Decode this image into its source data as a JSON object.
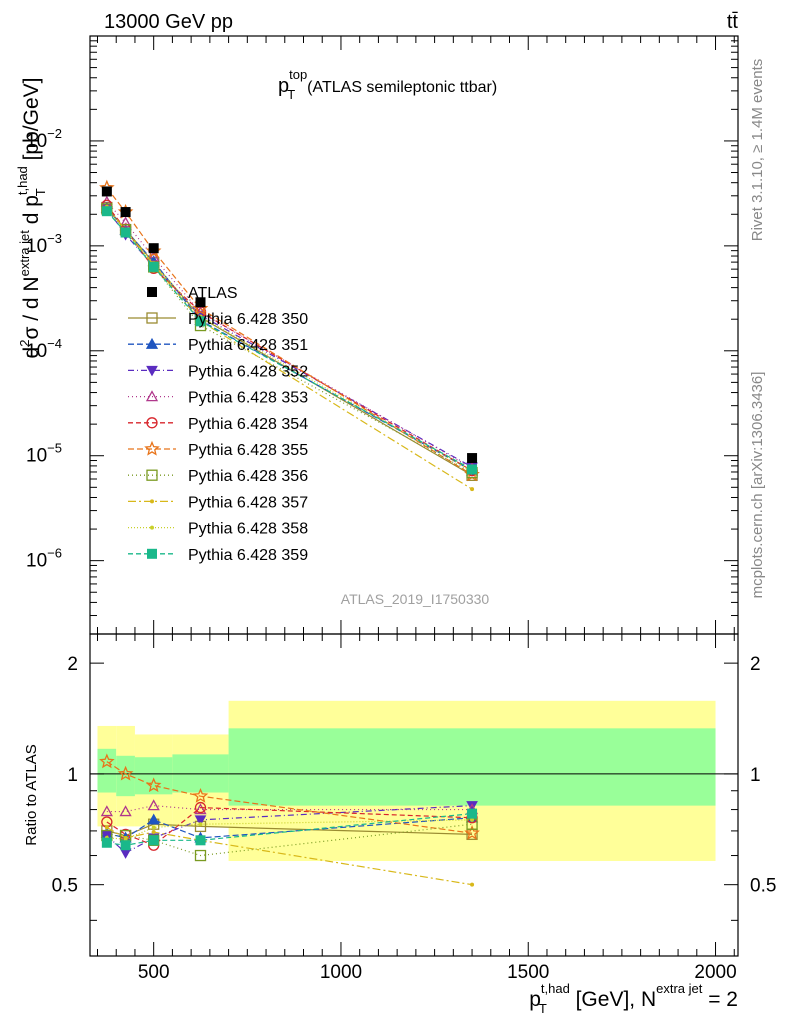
{
  "header": {
    "energy": "13000 GeV pp",
    "process": "tt̄",
    "rivet_version": "Rivet 3.1.10, ≥ 1.4M events",
    "site": "mcplots.cern.ch [arXiv:1306.3436]",
    "analysis_id": "ATLAS_2019_I1750330"
  },
  "chart_data": [
    {
      "type": "scatter",
      "panel": "main",
      "title": "p_T^top (ATLAS semileptonic ttbar)",
      "ylabel": "d²σ / d N^extra jet d p_T^t,had [pb/GeV]",
      "xlim": [
        330,
        2060
      ],
      "ylim": [
        2e-07,
        0.1
      ],
      "y_scale": "log",
      "y_ticks": [
        {
          "v": 1e-06,
          "label": "10",
          "exp": "−6"
        },
        {
          "v": 1e-05,
          "label": "10",
          "exp": "−5"
        },
        {
          "v": 0.0001,
          "label": "10",
          "exp": "−4"
        },
        {
          "v": 0.001,
          "label": "10",
          "exp": "−3"
        },
        {
          "v": 0.01,
          "label": "10",
          "exp": "−2"
        }
      ],
      "x": [
        375,
        425,
        500,
        625,
        1350
      ],
      "data": {
        "name": "ATLAS",
        "values": [
          0.0033,
          0.0021,
          0.00095,
          0.00029,
          9.5e-06
        ]
      },
      "series": [
        {
          "name": "Pythia 6.428 350",
          "color": "#9a8c32",
          "dash": "",
          "marker": "square-open",
          "values": [
            0.00232,
            0.00143,
            0.00069,
            0.000208,
            6.5e-06
          ]
        },
        {
          "name": "Pythia 6.428 351",
          "color": "#1f55c0",
          "dash": "6,3",
          "marker": "triangle-up",
          "values": [
            0.00229,
            0.00141,
            0.00071,
            0.000195,
            7.2e-06
          ]
        },
        {
          "name": "Pythia 6.428 352",
          "color": "#5a2cc0",
          "dash": "6,3,1,3",
          "marker": "triangle-down",
          "values": [
            0.00225,
            0.00128,
            0.00064,
            0.000218,
            7.8e-06
          ]
        },
        {
          "name": "Pythia 6.428 353",
          "color": "#b0388c",
          "dash": "1,3",
          "marker": "triangle-up-open",
          "values": [
            0.00262,
            0.00166,
            0.00078,
            0.000232,
            7.6e-06
          ]
        },
        {
          "name": "Pythia 6.428 354",
          "color": "#d8262c",
          "dash": "5,3",
          "marker": "circle-open",
          "values": [
            0.00244,
            0.00144,
            0.00061,
            0.000235,
            7.2e-06
          ]
        },
        {
          "name": "Pythia 6.428 355",
          "color": "#e8741a",
          "dash": "6,3",
          "marker": "star-open",
          "values": [
            0.00357,
            0.0021,
            0.00089,
            0.000252,
            6.6e-06
          ]
        },
        {
          "name": "Pythia 6.428 356",
          "color": "#7a9a22",
          "dash": "1,3",
          "marker": "square-open",
          "values": [
            0.00225,
            0.00142,
            0.00063,
            0.000174,
            6.9e-06
          ]
        },
        {
          "name": "Pythia 6.428 357",
          "color": "#d8b81a",
          "dash": "8,3,2,3",
          "marker": "dot",
          "values": [
            0.00236,
            0.00141,
            0.00066,
            0.000192,
            4.8e-06
          ]
        },
        {
          "name": "Pythia 6.428 358",
          "color": "#c8d02a",
          "dash": "1,2",
          "marker": "dot",
          "values": [
            0.00221,
            0.0014,
            0.00068,
            0.000212,
            7.1e-06
          ]
        },
        {
          "name": "Pythia 6.428 359",
          "color": "#1ab88a",
          "dash": "5,3",
          "marker": "square",
          "values": [
            0.00214,
            0.00134,
            0.00063,
            0.000191,
            7.4e-06
          ]
        }
      ]
    },
    {
      "type": "scatter",
      "panel": "ratio",
      "ylabel": "Ratio to ATLAS",
      "xlabel": "p_T^t,had [GeV], N^extra jet = 2",
      "xlim": [
        330,
        2060
      ],
      "ylim": [
        0.32,
        2.4
      ],
      "y_scale": "log",
      "x_ticks": [
        500,
        1000,
        1500,
        2000
      ],
      "y_ticks": [
        0.5,
        1,
        2
      ],
      "bins": [
        350,
        400,
        450,
        550,
        700,
        2000
      ],
      "band_inner": [
        [
          0.89,
          1.17
        ],
        [
          0.87,
          1.12
        ],
        [
          0.88,
          1.11
        ],
        [
          0.89,
          1.13
        ],
        [
          0.82,
          1.33
        ]
      ],
      "band_outer": [
        [
          0.72,
          1.35
        ],
        [
          0.72,
          1.35
        ],
        [
          0.72,
          1.28
        ],
        [
          0.72,
          1.28
        ],
        [
          0.58,
          1.58
        ]
      ],
      "x": [
        375,
        425,
        500,
        625,
        1350
      ],
      "series": [
        {
          "name": "Pythia 6.428 350",
          "values": [
            0.7,
            0.68,
            0.73,
            0.72,
            0.685
          ]
        },
        {
          "name": "Pythia 6.428 351",
          "values": [
            0.69,
            0.67,
            0.75,
            0.67,
            0.76
          ]
        },
        {
          "name": "Pythia 6.428 352",
          "values": [
            0.68,
            0.61,
            0.67,
            0.75,
            0.82
          ]
        },
        {
          "name": "Pythia 6.428 353",
          "values": [
            0.79,
            0.79,
            0.82,
            0.8,
            0.8
          ]
        },
        {
          "name": "Pythia 6.428 354",
          "values": [
            0.74,
            0.685,
            0.64,
            0.81,
            0.76
          ]
        },
        {
          "name": "Pythia 6.428 355",
          "values": [
            1.08,
            1.0,
            0.93,
            0.87,
            0.69
          ]
        },
        {
          "name": "Pythia 6.428 356",
          "values": [
            0.68,
            0.68,
            0.66,
            0.6,
            0.73
          ]
        },
        {
          "name": "Pythia 6.428 357",
          "values": [
            0.715,
            0.67,
            0.695,
            0.66,
            0.5
          ]
        },
        {
          "name": "Pythia 6.428 358",
          "values": [
            0.67,
            0.665,
            0.715,
            0.73,
            0.75
          ]
        },
        {
          "name": "Pythia 6.428 359",
          "values": [
            0.65,
            0.64,
            0.66,
            0.66,
            0.78
          ]
        }
      ]
    }
  ]
}
